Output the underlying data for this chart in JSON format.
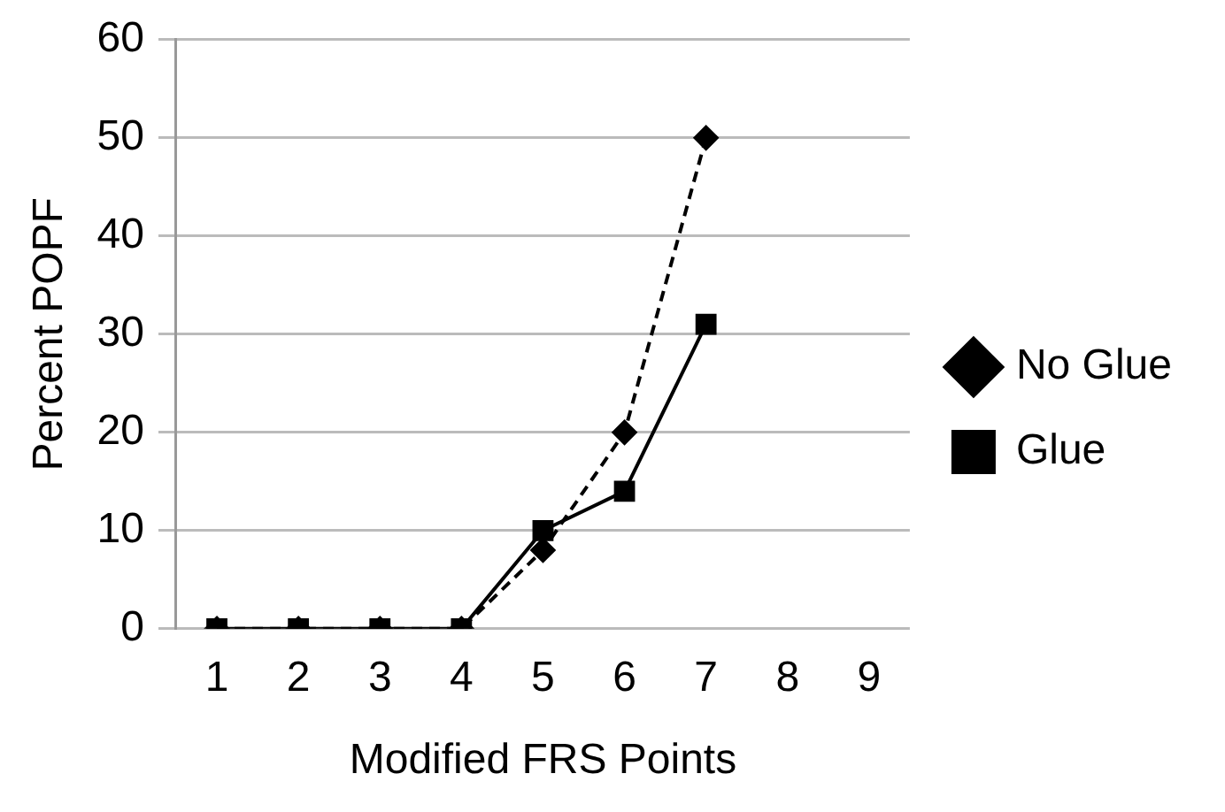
{
  "chart_data": {
    "type": "line",
    "xlabel": "Modified FRS Points",
    "ylabel": "Percent POPF",
    "categories": [
      "1",
      "2",
      "3",
      "4",
      "5",
      "6",
      "7",
      "8",
      "9"
    ],
    "series": [
      {
        "name": "No Glue",
        "color": "#000000",
        "marker": "diamond",
        "line_style": "dashed",
        "values": [
          0,
          0,
          0,
          0,
          8,
          20,
          50,
          null,
          null
        ]
      },
      {
        "name": "Glue",
        "color": "#000000",
        "marker": "square",
        "line_style": "solid",
        "values": [
          0,
          0,
          0,
          0,
          10,
          14,
          31,
          null,
          null
        ]
      }
    ],
    "ylim": [
      0,
      60
    ],
    "yticks": [
      0,
      10,
      20,
      30,
      40,
      50,
      60
    ],
    "grid": "y",
    "legend": "right"
  }
}
